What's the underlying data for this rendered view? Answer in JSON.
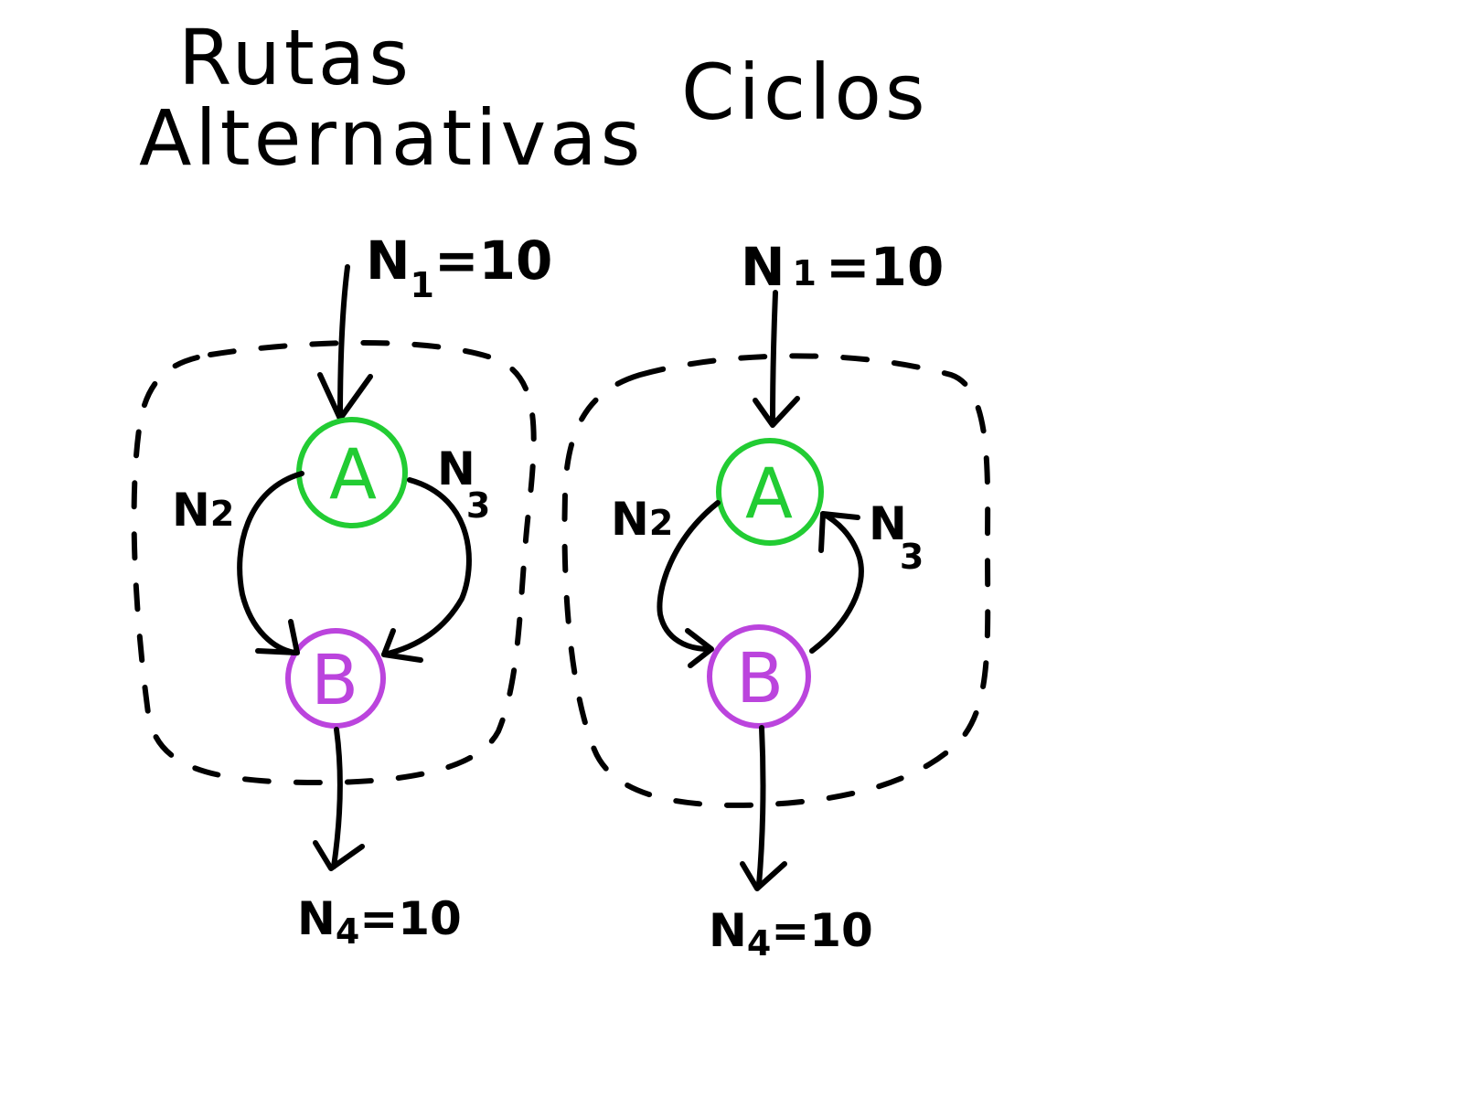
{
  "panels": {
    "left": {
      "title_line1": "Rutas",
      "title_line2": "Alternativas",
      "flow_in": {
        "symbol": "N",
        "sub": "1",
        "value": "=10"
      },
      "flow_left": {
        "symbol": "N",
        "sub": "2"
      },
      "flow_right": {
        "symbol": "N",
        "sub": "3"
      },
      "flow_out": {
        "symbol": "N",
        "sub": "4",
        "value": "=10"
      },
      "node_top": "A",
      "node_bottom": "B"
    },
    "right": {
      "title": "Ciclos",
      "flow_in": {
        "symbol": "N",
        "sub": "1",
        "value": "=10"
      },
      "flow_left": {
        "symbol": "N",
        "sub": "2"
      },
      "flow_right": {
        "symbol": "N",
        "sub": "3"
      },
      "flow_out": {
        "symbol": "N",
        "sub": "4",
        "value": "=10"
      },
      "node_top": "A",
      "node_bottom": "B"
    }
  },
  "colors": {
    "node_a": "#22cc33",
    "node_b": "#bb44dd",
    "ink": "#000000"
  }
}
